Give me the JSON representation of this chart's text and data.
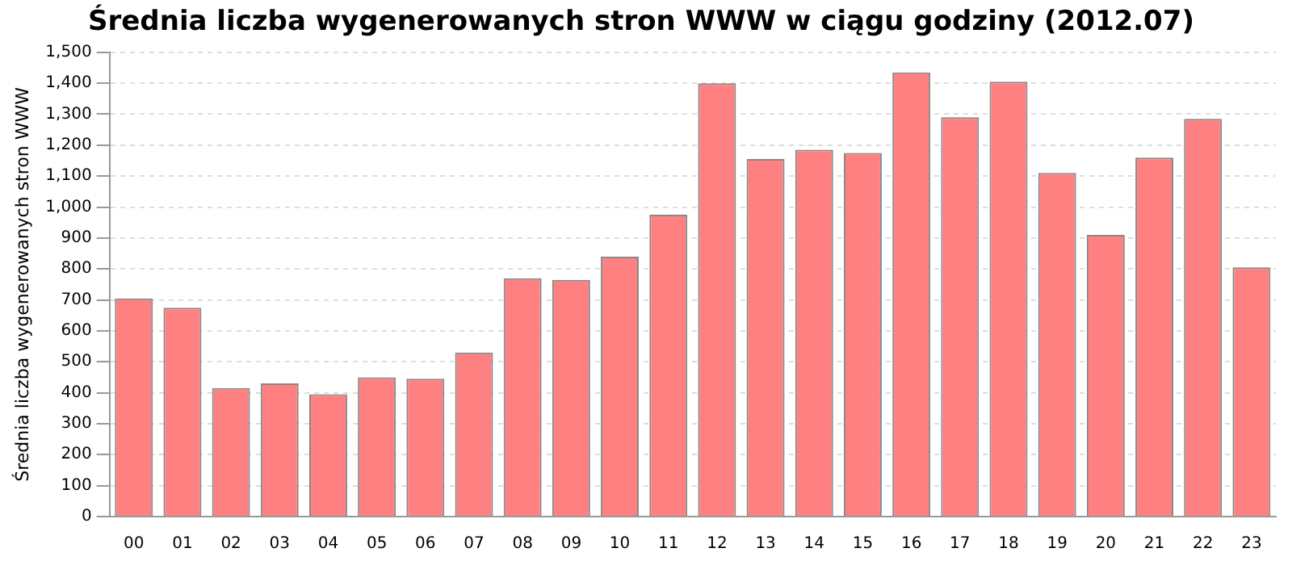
{
  "chart_data": {
    "type": "bar",
    "title": "Średnia liczba wygenerowanych stron WWW w ciągu godziny (2012.07)",
    "ylabel": "Średnia liczba wygenerowanych stron WWW",
    "categories": [
      "00",
      "01",
      "02",
      "03",
      "04",
      "05",
      "06",
      "07",
      "08",
      "09",
      "10",
      "11",
      "12",
      "13",
      "14",
      "15",
      "16",
      "17",
      "18",
      "19",
      "20",
      "21",
      "22",
      "23"
    ],
    "values": [
      705,
      675,
      415,
      430,
      395,
      450,
      445,
      530,
      770,
      765,
      840,
      975,
      1400,
      1155,
      1185,
      1175,
      1435,
      1290,
      1405,
      1110,
      910,
      1160,
      1285,
      805
    ],
    "color": "#ff8080",
    "ylim": [
      0,
      1500
    ],
    "yticks": [
      0,
      100,
      200,
      300,
      400,
      500,
      600,
      700,
      800,
      900,
      {
        "value": 1000,
        "label": "1,000"
      },
      {
        "value": 1100,
        "label": "1,100"
      },
      {
        "value": 1200,
        "label": "1,200"
      },
      {
        "value": 1300,
        "label": "1,300"
      },
      {
        "value": 1400,
        "label": "1,400"
      },
      {
        "value": 1500,
        "label": "1,500"
      }
    ],
    "grid": "y",
    "legend": false
  }
}
